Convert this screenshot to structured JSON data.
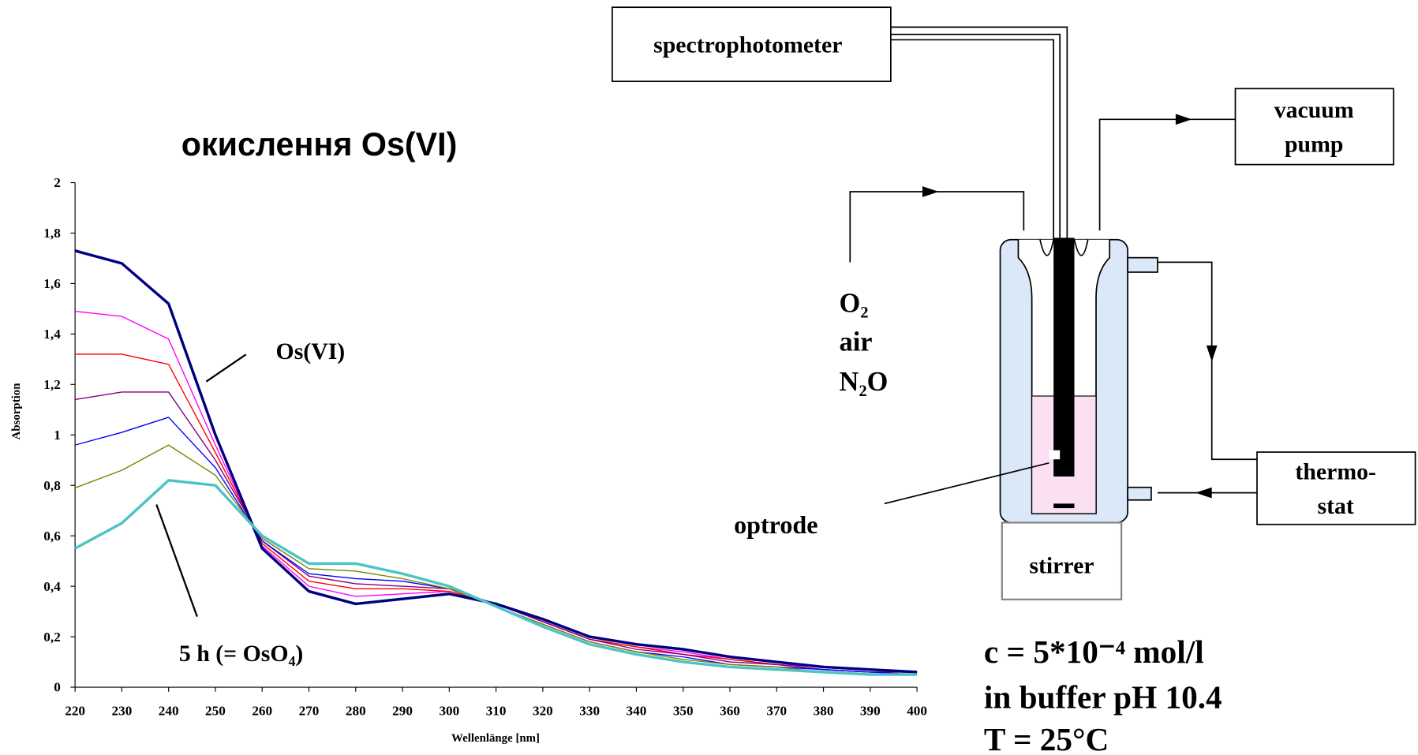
{
  "chart_data": {
    "type": "line",
    "title": "окислення Os(VI)",
    "xlabel": "Wellenlänge [nm]",
    "ylabel": "Absorption",
    "x": [
      220,
      230,
      240,
      250,
      260,
      270,
      280,
      290,
      300,
      310,
      320,
      330,
      340,
      350,
      360,
      370,
      380,
      390,
      400
    ],
    "xlim": [
      220,
      400
    ],
    "xticks": [
      220,
      230,
      240,
      250,
      260,
      270,
      280,
      290,
      300,
      310,
      320,
      330,
      340,
      350,
      360,
      370,
      380,
      390,
      400
    ],
    "ylim": [
      0,
      2
    ],
    "yticks": [
      0,
      {
        "value": 0.2,
        "label": "0,2"
      },
      {
        "value": 0.4,
        "label": "0,4"
      },
      {
        "value": 0.6,
        "label": "0,6"
      },
      {
        "value": 0.8,
        "label": "0,8"
      },
      1,
      {
        "value": 1.2,
        "label": "1,2"
      },
      {
        "value": 1.4,
        "label": "1,4"
      },
      {
        "value": 1.6,
        "label": "1,6"
      },
      {
        "value": 1.8,
        "label": "1,8"
      },
      2
    ],
    "series": [
      {
        "color": "#ff00ff",
        "line_width": 1.2,
        "values": [
          1.49,
          1.47,
          1.38,
          0.96,
          0.56,
          0.4,
          0.36,
          0.37,
          0.38,
          0.33,
          0.26,
          0.19,
          0.16,
          0.14,
          0.11,
          0.09,
          0.08,
          0.07,
          0.06
        ]
      },
      {
        "color": "#ff0000",
        "line_width": 1.2,
        "values": [
          1.32,
          1.32,
          1.28,
          0.93,
          0.57,
          0.42,
          0.39,
          0.39,
          0.38,
          0.33,
          0.26,
          0.19,
          0.16,
          0.13,
          0.11,
          0.09,
          0.07,
          0.06,
          0.06
        ]
      },
      {
        "color": "#800080",
        "line_width": 1.2,
        "values": [
          1.14,
          1.17,
          1.17,
          0.9,
          0.58,
          0.44,
          0.41,
          0.4,
          0.39,
          0.33,
          0.26,
          0.19,
          0.15,
          0.13,
          0.1,
          0.09,
          0.07,
          0.06,
          0.06
        ]
      },
      {
        "color": "#0000ff",
        "line_width": 1.2,
        "values": [
          0.96,
          1.01,
          1.07,
          0.87,
          0.58,
          0.45,
          0.43,
          0.42,
          0.39,
          0.32,
          0.25,
          0.18,
          0.14,
          0.12,
          0.09,
          0.08,
          0.07,
          0.06,
          0.05
        ]
      },
      {
        "color": "#808000",
        "line_width": 1.2,
        "values": [
          0.79,
          0.86,
          0.96,
          0.84,
          0.59,
          0.47,
          0.46,
          0.43,
          0.39,
          0.32,
          0.25,
          0.18,
          0.14,
          0.11,
          0.09,
          0.08,
          0.06,
          0.05,
          0.05
        ]
      },
      {
        "color": "#000080",
        "line_width": 3,
        "values": [
          1.73,
          1.68,
          1.52,
          1.0,
          0.55,
          0.38,
          0.33,
          0.35,
          0.37,
          0.33,
          0.27,
          0.2,
          0.17,
          0.15,
          0.12,
          0.1,
          0.08,
          0.07,
          0.06
        ]
      },
      {
        "color": "#4dc4c4",
        "line_width": 3,
        "values": [
          0.55,
          0.65,
          0.82,
          0.8,
          0.6,
          0.49,
          0.49,
          0.45,
          0.4,
          0.32,
          0.24,
          0.17,
          0.13,
          0.1,
          0.08,
          0.07,
          0.06,
          0.05,
          0.05
        ]
      }
    ],
    "annotations": [
      "Os(VI)",
      "5 h (= OsO₄)"
    ]
  },
  "diagram": {
    "spectrophotometer": "spectrophotometer",
    "vacuum_pump": [
      "vacuum",
      "pump"
    ],
    "gases": [
      "O₂",
      "air",
      "N₂O"
    ],
    "thermostat": [
      "thermo-",
      "stat"
    ],
    "stirrer": "stirrer",
    "optrode": "optrode",
    "conditions": [
      "c = 5*10⁻⁴ mol/l",
      "in buffer pH 10.4",
      "T = 25°C"
    ]
  }
}
